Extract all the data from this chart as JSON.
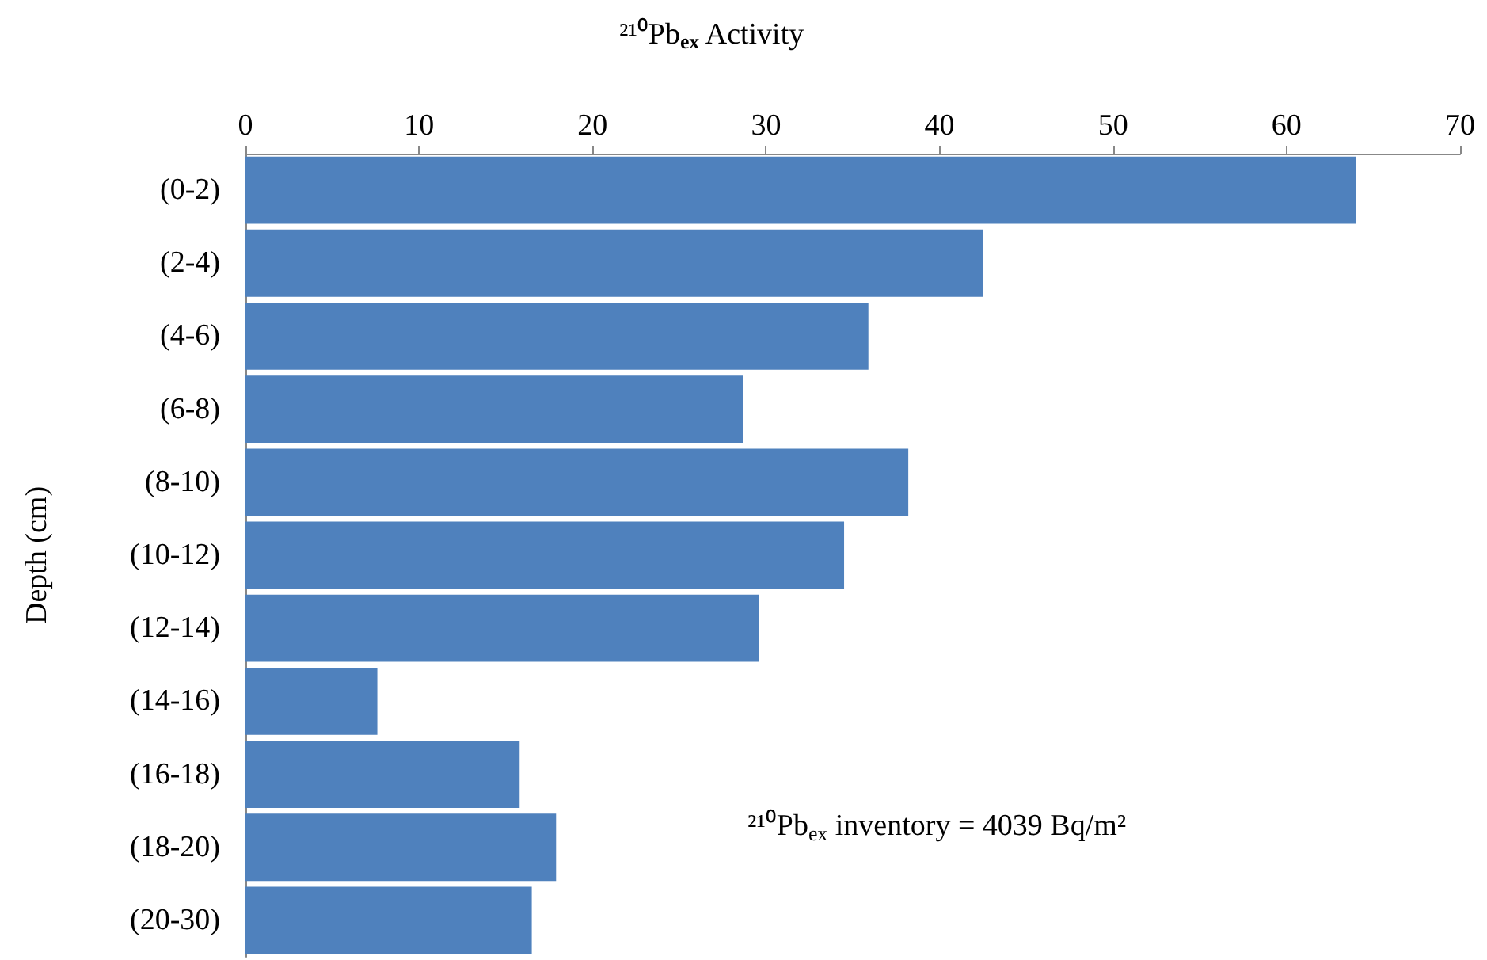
{
  "chart_data": {
    "type": "bar",
    "orientation": "horizontal",
    "title": "²¹⁰Pb$_{ex}$ Activity",
    "ylabel": "Depth (cm)",
    "categories": [
      "(0-2)",
      "(2-4)",
      "(4-6)",
      "(6-8)",
      "(8-10)",
      "(10-12)",
      "(12-14)",
      "(14-16)",
      "(16-18)",
      "(18-20)",
      "(20-30)"
    ],
    "values": [
      64.0,
      42.5,
      35.9,
      28.7,
      38.2,
      34.5,
      29.6,
      7.6,
      15.8,
      17.9,
      16.5
    ],
    "color": "#4f81bd",
    "xlim": [
      0,
      70
    ],
    "xticks": [
      0,
      10,
      20,
      30,
      40,
      50,
      60,
      70
    ],
    "annotations": [
      "²¹⁰Pb$_{ex}$ inventory = 4039 Bq/m²"
    ],
    "grid": false
  }
}
